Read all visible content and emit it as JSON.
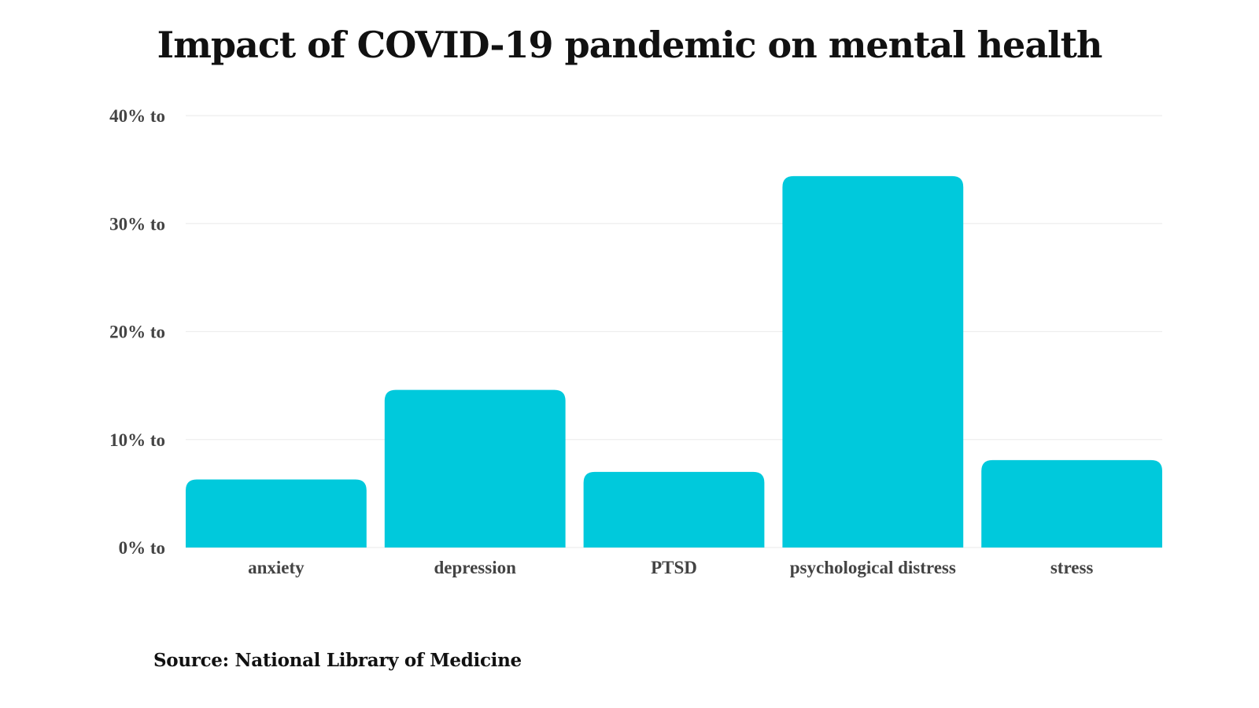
{
  "chart_data": {
    "type": "bar",
    "title": "Impact of COVID-19 pandemic on mental health",
    "categories": [
      "anxiety",
      "depression",
      "PTSD",
      "psychological distress",
      "stress"
    ],
    "values": [
      6.3,
      14.6,
      7.0,
      34.4,
      8.1
    ],
    "y_ticks": [
      0,
      10,
      20,
      30,
      40
    ],
    "y_tick_labels": [
      "0% to",
      "10% to",
      "20% to",
      "30% to",
      "40% to"
    ],
    "ylim": [
      0,
      40
    ],
    "xlabel": "",
    "ylabel": "",
    "grid": true,
    "legend": "none",
    "bar_color": "#00C9DC",
    "grid_color": "#EEEEEE"
  },
  "source": "Source: National Library of Medicine"
}
